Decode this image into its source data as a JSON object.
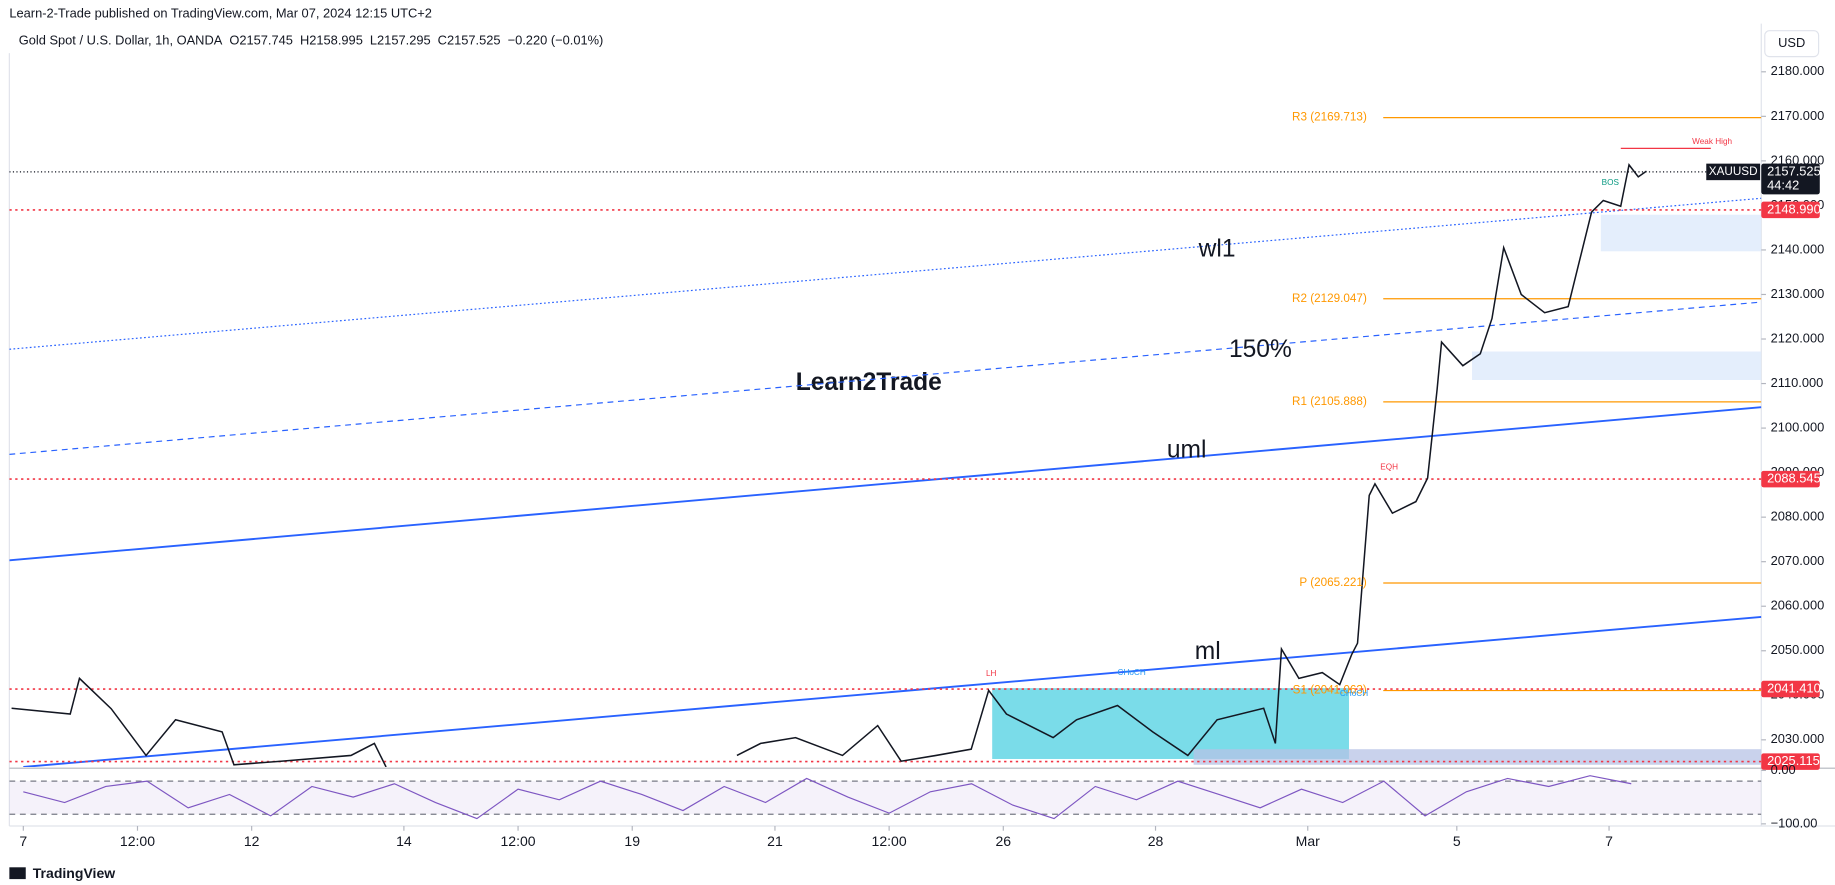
{
  "page": {
    "published": "Learn-2-Trade published on TradingView.com, Mar 07, 2024 12:15 UTC+2",
    "currency": "USD",
    "watermark": "Learn2Trade",
    "brand": "TradingView"
  },
  "chart_data": [
    {
      "type": "line",
      "title": "Gold Spot / U.S. Dollar, 1h, OANDA",
      "open": "O2157.745",
      "high": "H2158.995",
      "low": "L2157.295",
      "close": "C2157.525",
      "change": "−0.220 (−0.01%)",
      "xlim": [
        -4.4,
        548
      ],
      "ylim": [
        2023.9,
        2184.2
      ],
      "xticks": [
        {
          "value": 0,
          "label": "7"
        },
        {
          "value": 36,
          "label": "12:00"
        },
        {
          "value": 72,
          "label": "12"
        },
        {
          "value": 120,
          "label": "14"
        },
        {
          "value": 156,
          "label": "12:00"
        },
        {
          "value": 192,
          "label": "19"
        },
        {
          "value": 237,
          "label": "21"
        },
        {
          "value": 273,
          "label": "12:00"
        },
        {
          "value": 309,
          "label": "26"
        },
        {
          "value": 357,
          "label": "28"
        },
        {
          "value": 405,
          "label": "Mar"
        },
        {
          "value": 452,
          "label": "5"
        },
        {
          "value": 500,
          "label": "7"
        }
      ],
      "yticks": [
        {
          "value": 2030,
          "label": "2030.000"
        },
        {
          "value": 2040,
          "label": "2040.000"
        },
        {
          "value": 2050,
          "label": "2050.000"
        },
        {
          "value": 2060,
          "label": "2060.000"
        },
        {
          "value": 2070,
          "label": "2070.000"
        },
        {
          "value": 2080,
          "label": "2080.000"
        },
        {
          "value": 2090,
          "label": "2090.000"
        },
        {
          "value": 2100,
          "label": "2100.000"
        },
        {
          "value": 2110,
          "label": "2110.000"
        },
        {
          "value": 2120,
          "label": "2120.000"
        },
        {
          "value": 2130,
          "label": "2130.000"
        },
        {
          "value": 2140,
          "label": "2140.000"
        },
        {
          "value": 2150,
          "label": "2150.000"
        },
        {
          "value": 2160,
          "label": "2160.000"
        },
        {
          "value": 2170,
          "label": "2170.000"
        },
        {
          "value": 2180,
          "label": "2180.000"
        }
      ],
      "grid": false,
      "x": [
        -3.7,
        14.8,
        17.7,
        27.7,
        38.7,
        48,
        62.7,
        66.4,
        81.2,
        103.3,
        110.7,
        114.4,
        null,
        225,
        232.5,
        243.5,
        258.3,
        269.4,
        276.8,
        287.8,
        298.9,
        304.4,
        310,
        324.7,
        332.1,
        345,
        356.1,
        367.2,
        376.4,
        391.1,
        394.8,
        396.7,
        402.2,
        409.6,
        415.1,
        418.8,
        420.7,
        424.4,
        426.2,
        431.7,
        439.1,
        442.8,
        445.8,
        447.2,
        453.9,
        459.4,
        463.1,
        466.8,
        472.3,
        479.7,
        487.1,
        490.8,
        494.5,
        498.2,
        503.7,
        506.3,
        509.2,
        511.8
      ],
      "series": [
        {
          "name": "XAUUSD",
          "color": "#131722",
          "values": [
            2037.1,
            2035.8,
            2043.8,
            2037,
            2026.5,
            2034.5,
            2031.8,
            2024.4,
            2025.2,
            2026.5,
            2029.2,
            2023.9,
            null,
            2026.5,
            2029.2,
            2030.5,
            2026.5,
            2033.2,
            2025.2,
            2026.5,
            2027.9,
            2041.1,
            2035.8,
            2030.5,
            2034.5,
            2037.7,
            2031.8,
            2026.5,
            2034.5,
            2037.1,
            2029.2,
            2050.4,
            2043.8,
            2045.1,
            2042.4,
            2049.1,
            2051.7,
            2084.9,
            2087.5,
            2080.9,
            2083.5,
            2088.8,
            2108.7,
            2119.3,
            2114,
            2116.7,
            2124.6,
            2140.5,
            2130,
            2125.9,
            2127.3,
            2137.9,
            2148.5,
            2151.1,
            2149.8,
            2159.1,
            2156.4,
            2157.7
          ]
        }
      ],
      "levels": [
        {
          "label": "R3 (2169.713)",
          "value": 2169.713,
          "x": 428.8
        },
        {
          "label": "R2 (2129.047)",
          "value": 2129.047,
          "x": 428.8
        },
        {
          "label": "R1 (2105.888)",
          "value": 2105.888,
          "x": 428.8
        },
        {
          "label": "P (2065.221)",
          "value": 2065.221,
          "x": 428.8
        },
        {
          "label": "S1 (2041.063)",
          "value": 2041.063,
          "x": 428.8
        }
      ],
      "level_color": "#ff9800",
      "price_lines": [
        {
          "value": 2148.99,
          "label": "2148.990"
        },
        {
          "value": 2088.545,
          "label": "2088.545"
        },
        {
          "value": 2041.41,
          "label": "2041.410"
        },
        {
          "value": 2025.115,
          "label": "2025.115"
        }
      ],
      "price_line_color": "#f23645",
      "last": {
        "value": 2157.525,
        "label": "2157.525",
        "countdown": "44:42"
      },
      "trendlines": [
        {
          "label": "wl1",
          "style": "dotted",
          "x": [
            -4.4,
            548
          ],
          "y": [
            2117.7,
            2151.6
          ]
        },
        {
          "label": "150%",
          "style": "dashed",
          "x": [
            -4.4,
            548
          ],
          "y": [
            2094.1,
            2128.3
          ]
        },
        {
          "label": "uml",
          "style": "solid",
          "x": [
            -4.4,
            548
          ],
          "y": [
            2070.3,
            2104.7
          ]
        },
        {
          "label": "ml",
          "style": "solid",
          "x": [
            0,
            548
          ],
          "y": [
            2023.9,
            2057.6
          ]
        }
      ],
      "trend_color": "#2962ff",
      "boxes": [
        {
          "x": [
            305.5,
            418
          ],
          "y": [
            2025.7,
            2041.6
          ],
          "color": "#4dd0e1"
        },
        {
          "x": [
            497.4,
            548
          ],
          "y": [
            2139.7,
            2147.9
          ],
          "color": "#dbe8fb"
        },
        {
          "x": [
            456.8,
            548
          ],
          "y": [
            2110.8,
            2117.2
          ],
          "color": "#dbe8fb"
        },
        {
          "x": [
            369,
            548
          ],
          "y": [
            2024.4,
            2027.9
          ],
          "color": "#b7c3e6"
        }
      ],
      "annotations": [
        "Weak High",
        "BOS",
        "EQH",
        "LH",
        "CHoCH",
        "CHoCH"
      ]
    },
    {
      "type": "line",
      "x": [
        0,
        13,
        26,
        39,
        52,
        65,
        78,
        91,
        104,
        117,
        130,
        143,
        156,
        169,
        182,
        195,
        208,
        221,
        234,
        247,
        260,
        273,
        286,
        299,
        312,
        325,
        338,
        351,
        364,
        377,
        390,
        403,
        416,
        429,
        442,
        455,
        468,
        481,
        494,
        507
      ],
      "ylim": [
        -104,
        2
      ],
      "yticks": [
        {
          "value": 0,
          "label": "0.00"
        },
        {
          "value": -100,
          "label": "−100.00"
        }
      ],
      "bands": [
        -20,
        -82
      ],
      "series": [
        {
          "color": "#7e57c2",
          "values": [
            -40,
            -60,
            -30,
            -20,
            -70,
            -45,
            -85,
            -30,
            -50,
            -25,
            -60,
            -90,
            -35,
            -55,
            -20,
            -45,
            -75,
            -30,
            -60,
            -15,
            -50,
            -80,
            -40,
            -25,
            -65,
            -90,
            -30,
            -55,
            -20,
            -45,
            -70,
            -35,
            -60,
            -20,
            -85,
            -40,
            -15,
            -30,
            -10,
            -25
          ]
        }
      ]
    }
  ]
}
